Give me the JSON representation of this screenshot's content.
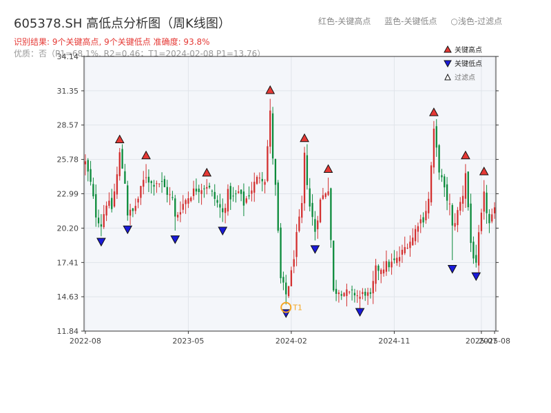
{
  "title": "605378.SH 高低点分析图（周K线图）",
  "header_legend": {
    "red": "红色-关键高点",
    "blue": "蓝色-关键低点",
    "filtered": "○浅色-过滤点"
  },
  "result_text": "识别结果: 9个关键高点, 9个关键低点   准确度: 93.8%",
  "quality_text": "优质：否（P1=68.1%, R2=0.46；T1=2024-02-08 P1=13.76）",
  "colors": {
    "up": "#d32f2f",
    "down": "#0a8a3a",
    "high_marker": "#e53935",
    "low_marker": "#1a1ad8",
    "t1_ring": "#f5a623",
    "plot_bg": "#f4f6fa",
    "grid": "#e0e4ea"
  },
  "chart_data": {
    "type": "candlestick",
    "y_ticks": [
      "11.84",
      "14.63",
      "17.41",
      "20.20",
      "22.99",
      "25.78",
      "28.57",
      "31.35",
      "34.14"
    ],
    "ylim": [
      11.84,
      34.14
    ],
    "x_ticks": [
      {
        "label": "2022-08",
        "week": 0
      },
      {
        "label": "2023-05",
        "week": 39
      },
      {
        "label": "2024-02",
        "week": 78
      },
      {
        "label": "2024-11",
        "week": 117
      },
      {
        "label": "2025-07",
        "week": 150
      },
      {
        "label": "2025-08",
        "week": 155
      }
    ],
    "n_weeks": 156,
    "legend": {
      "high": "关键高点",
      "low": "关键低点",
      "filtered": "过滤点"
    },
    "key_highs": [
      {
        "week": 13,
        "value": 26.9
      },
      {
        "week": 23,
        "value": 25.6
      },
      {
        "week": 46,
        "value": 24.2
      },
      {
        "week": 70,
        "value": 30.9
      },
      {
        "week": 83,
        "value": 27.0
      },
      {
        "week": 92,
        "value": 24.5
      },
      {
        "week": 132,
        "value": 29.1
      },
      {
        "week": 144,
        "value": 25.6
      },
      {
        "week": 151,
        "value": 24.3
      }
    ],
    "key_lows": [
      {
        "week": 6,
        "value": 19.6
      },
      {
        "week": 16,
        "value": 20.6
      },
      {
        "week": 34,
        "value": 19.8
      },
      {
        "week": 52,
        "value": 20.5
      },
      {
        "week": 76,
        "value": 13.8
      },
      {
        "week": 87,
        "value": 19.0
      },
      {
        "week": 104,
        "value": 13.9
      },
      {
        "week": 139,
        "value": 17.4
      },
      {
        "week": 148,
        "value": 16.8
      }
    ],
    "t1": {
      "label": "T1",
      "week": 76,
      "value": 13.76
    },
    "close_path": [
      [
        0,
        25.5
      ],
      [
        2,
        23.8
      ],
      [
        4,
        21.3
      ],
      [
        6,
        20.5
      ],
      [
        8,
        22.3
      ],
      [
        10,
        21.8
      ],
      [
        12,
        24.5
      ],
      [
        13,
        26.2
      ],
      [
        15,
        24.0
      ],
      [
        16,
        21.4
      ],
      [
        18,
        21.5
      ],
      [
        20,
        22.6
      ],
      [
        22,
        24.0
      ],
      [
        23,
        24.5
      ],
      [
        25,
        23.8
      ],
      [
        27,
        24.0
      ],
      [
        29,
        23.8
      ],
      [
        31,
        23.1
      ],
      [
        33,
        22.5
      ],
      [
        34,
        21.0
      ],
      [
        36,
        21.8
      ],
      [
        38,
        22.5
      ],
      [
        40,
        23.0
      ],
      [
        42,
        23.4
      ],
      [
        44,
        23.5
      ],
      [
        46,
        23.7
      ],
      [
        48,
        23.0
      ],
      [
        50,
        22.2
      ],
      [
        52,
        21.4
      ],
      [
        54,
        23.0
      ],
      [
        56,
        22.6
      ],
      [
        58,
        23.1
      ],
      [
        60,
        22.2
      ],
      [
        62,
        23.0
      ],
      [
        64,
        23.8
      ],
      [
        66,
        24.5
      ],
      [
        68,
        24.2
      ],
      [
        70,
        29.5
      ],
      [
        71,
        26.0
      ],
      [
        72,
        23.5
      ],
      [
        74,
        16.0
      ],
      [
        76,
        14.8
      ],
      [
        78,
        16.5
      ],
      [
        80,
        19.5
      ],
      [
        82,
        22.0
      ],
      [
        83,
        26.0
      ],
      [
        85,
        22.0
      ],
      [
        87,
        20.0
      ],
      [
        89,
        22.4
      ],
      [
        91,
        23.2
      ],
      [
        92,
        23.5
      ],
      [
        94,
        15.0
      ],
      [
        96,
        15.2
      ],
      [
        98,
        15.0
      ],
      [
        100,
        14.8
      ],
      [
        102,
        14.9
      ],
      [
        104,
        14.6
      ],
      [
        106,
        15.0
      ],
      [
        108,
        14.5
      ],
      [
        110,
        16.8
      ],
      [
        112,
        17.0
      ],
      [
        114,
        17.2
      ],
      [
        116,
        17.3
      ],
      [
        118,
        17.6
      ],
      [
        120,
        18.2
      ],
      [
        122,
        19.0
      ],
      [
        124,
        19.4
      ],
      [
        126,
        20.7
      ],
      [
        128,
        21.0
      ],
      [
        130,
        22.5
      ],
      [
        132,
        28.0
      ],
      [
        134,
        25.0
      ],
      [
        136,
        23.2
      ],
      [
        138,
        22.0
      ],
      [
        139,
        20.2
      ],
      [
        141,
        21.5
      ],
      [
        143,
        23.0
      ],
      [
        144,
        24.8
      ],
      [
        146,
        19.0
      ],
      [
        148,
        17.0
      ],
      [
        149,
        19.5
      ],
      [
        151,
        22.8
      ],
      [
        153,
        20.5
      ],
      [
        155,
        21.5
      ]
    ]
  }
}
